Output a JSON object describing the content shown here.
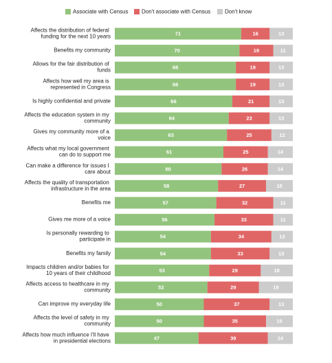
{
  "chart_data": {
    "type": "stacked-bar",
    "orientation": "horizontal",
    "categories": [
      "Affects the distribution of federal funding for the next 10 years",
      "Benefits my community",
      "Allows for the fair distribution of funds",
      "Affects how well my area is represented in Congress",
      "Is highly confidential and private",
      "Affects the education system in my community",
      "Gives my community more of a voice",
      "Affects what my local government can do to support me",
      "Can make a difference for issues I care about",
      "Affects the quality of transportation infrastructure in the area",
      "Benefits me",
      "Gives me more of a voice",
      "Is personally rewarding to participate in",
      "Benefits my family",
      "Impacts children and/or babies for 10 years of their childhood",
      "Affects access to healthcare in my community",
      "Can improve my everyday life",
      "Affects the level of safety in my community",
      "Affects how much influence I'll have in presidential elections"
    ],
    "series": [
      {
        "name": "Associate with Census",
        "color": "#93c47d",
        "values": [
          71,
          70,
          68,
          68,
          66,
          64,
          63,
          61,
          60,
          58,
          57,
          56,
          54,
          54,
          53,
          52,
          50,
          50,
          47
        ]
      },
      {
        "name": "Don't associate with Census",
        "color": "#e06666",
        "values": [
          16,
          19,
          19,
          19,
          21,
          23,
          25,
          25,
          26,
          27,
          32,
          33,
          34,
          33,
          29,
          29,
          37,
          35,
          39
        ]
      },
      {
        "name": "Don't know",
        "color": "#cccccc",
        "values": [
          13,
          11,
          13,
          13,
          13,
          13,
          12,
          14,
          14,
          15,
          11,
          11,
          12,
          13,
          18,
          19,
          13,
          15,
          14
        ]
      }
    ],
    "xlim": [
      0,
      100
    ],
    "legend": "top"
  }
}
